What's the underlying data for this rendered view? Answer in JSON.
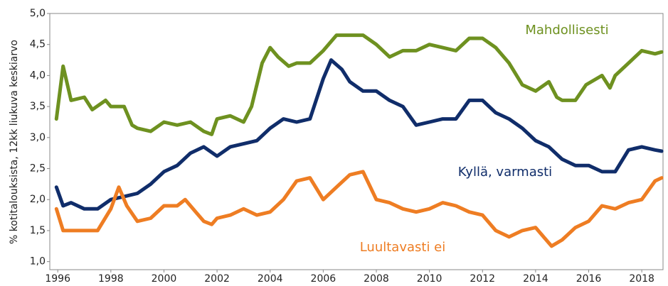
{
  "chart_data": {
    "type": "line",
    "y_label": "% kotitalouksista, 12kk liukuva keskiarvo",
    "xlim": [
      1995.7,
      2018.8
    ],
    "xticks": [
      1996,
      1998,
      2000,
      2002,
      2004,
      2006,
      2008,
      2010,
      2012,
      2014,
      2016,
      2018
    ],
    "ylim": [
      0.87,
      5.0
    ],
    "yticks": [
      {
        "value": 1.0,
        "label": "1,0"
      },
      {
        "value": 1.5,
        "label": "1,5"
      },
      {
        "value": 2.0,
        "label": "2,0"
      },
      {
        "value": 2.5,
        "label": "2,5"
      },
      {
        "value": 3.0,
        "label": "3,0"
      },
      {
        "value": 3.5,
        "label": "3,5"
      },
      {
        "value": 4.0,
        "label": "4,0"
      },
      {
        "value": 4.5,
        "label": "4,5"
      },
      {
        "value": 5.0,
        "label": "5,0"
      }
    ],
    "grid": false,
    "series": [
      {
        "name": "Mahdollisesti",
        "color": "#6e9120",
        "x": [
          1995.95,
          1996.2,
          1996.5,
          1997.0,
          1997.3,
          1997.8,
          1998.0,
          1998.5,
          1998.8,
          1999.0,
          1999.5,
          2000.0,
          2000.5,
          2001.0,
          2001.5,
          2001.8,
          2002.0,
          2002.5,
          2003.0,
          2003.3,
          2003.7,
          2004.0,
          2004.3,
          2004.7,
          2005.0,
          2005.5,
          2006.0,
          2006.5,
          2007.0,
          2007.5,
          2008.0,
          2008.5,
          2009.0,
          2009.5,
          2010.0,
          2010.5,
          2011.0,
          2011.5,
          2012.0,
          2012.5,
          2013.0,
          2013.5,
          2014.0,
          2014.5,
          2014.8,
          2015.0,
          2015.5,
          2015.9,
          2016.5,
          2016.8,
          2017.0,
          2017.5,
          2018.0,
          2018.5,
          2018.75
        ],
        "values": [
          3.3,
          4.15,
          3.6,
          3.65,
          3.45,
          3.6,
          3.5,
          3.5,
          3.2,
          3.15,
          3.1,
          3.25,
          3.2,
          3.25,
          3.1,
          3.05,
          3.3,
          3.35,
          3.25,
          3.5,
          4.2,
          4.45,
          4.3,
          4.15,
          4.2,
          4.2,
          4.4,
          4.65,
          4.65,
          4.65,
          4.5,
          4.3,
          4.4,
          4.4,
          4.5,
          4.45,
          4.4,
          4.6,
          4.6,
          4.45,
          4.2,
          3.85,
          3.75,
          3.9,
          3.65,
          3.6,
          3.6,
          3.85,
          4.0,
          3.8,
          4.0,
          4.2,
          4.4,
          4.35,
          4.38
        ]
      },
      {
        "name": "Kyllä, varmasti",
        "color": "#102d6a",
        "x": [
          1995.95,
          1996.2,
          1996.5,
          1997.0,
          1997.5,
          1998.0,
          1998.5,
          1999.0,
          1999.5,
          2000.0,
          2000.5,
          2001.0,
          2001.5,
          2002.0,
          2002.5,
          2003.0,
          2003.5,
          2004.0,
          2004.5,
          2005.0,
          2005.5,
          2006.0,
          2006.3,
          2006.7,
          2007.0,
          2007.5,
          2008.0,
          2008.5,
          2009.0,
          2009.5,
          2010.0,
          2010.5,
          2011.0,
          2011.5,
          2012.0,
          2012.5,
          2013.0,
          2013.5,
          2014.0,
          2014.5,
          2015.0,
          2015.5,
          2016.0,
          2016.5,
          2017.0,
          2017.5,
          2018.0,
          2018.5,
          2018.75
        ],
        "values": [
          2.2,
          1.9,
          1.95,
          1.85,
          1.85,
          2.0,
          2.05,
          2.1,
          2.25,
          2.45,
          2.55,
          2.75,
          2.85,
          2.7,
          2.85,
          2.9,
          2.95,
          3.15,
          3.3,
          3.25,
          3.3,
          3.95,
          4.25,
          4.1,
          3.9,
          3.75,
          3.75,
          3.6,
          3.5,
          3.2,
          3.25,
          3.3,
          3.3,
          3.6,
          3.6,
          3.4,
          3.3,
          3.15,
          2.95,
          2.85,
          2.65,
          2.55,
          2.55,
          2.45,
          2.45,
          2.8,
          2.85,
          2.8,
          2.78
        ]
      },
      {
        "name": "Luultavasti ei",
        "color": "#ee7d23",
        "x": [
          1995.95,
          1996.2,
          1996.5,
          1997.0,
          1997.5,
          1998.0,
          1998.3,
          1998.6,
          1999.0,
          1999.5,
          2000.0,
          2000.5,
          2000.8,
          2001.2,
          2001.5,
          2001.8,
          2002.0,
          2002.5,
          2003.0,
          2003.5,
          2004.0,
          2004.5,
          2005.0,
          2005.5,
          2006.0,
          2006.5,
          2007.0,
          2007.5,
          2008.0,
          2008.5,
          2009.0,
          2009.5,
          2010.0,
          2010.5,
          2011.0,
          2011.5,
          2012.0,
          2012.5,
          2013.0,
          2013.5,
          2014.0,
          2014.3,
          2014.6,
          2015.0,
          2015.5,
          2016.0,
          2016.5,
          2017.0,
          2017.5,
          2018.0,
          2018.5,
          2018.75
        ],
        "values": [
          1.85,
          1.5,
          1.5,
          1.5,
          1.5,
          1.85,
          2.2,
          1.9,
          1.65,
          1.7,
          1.9,
          1.9,
          2.0,
          1.8,
          1.65,
          1.6,
          1.7,
          1.75,
          1.85,
          1.75,
          1.8,
          2.0,
          2.3,
          2.35,
          2.0,
          2.2,
          2.4,
          2.45,
          2.0,
          1.95,
          1.85,
          1.8,
          1.85,
          1.95,
          1.9,
          1.8,
          1.75,
          1.5,
          1.4,
          1.5,
          1.55,
          1.4,
          1.25,
          1.35,
          1.55,
          1.65,
          1.9,
          1.85,
          1.95,
          2.0,
          2.3,
          2.35
        ]
      }
    ]
  }
}
